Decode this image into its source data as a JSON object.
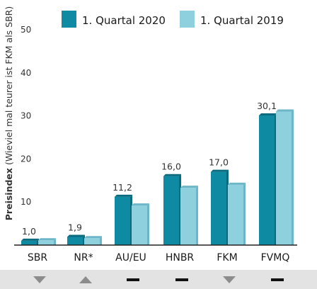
{
  "chart_data": {
    "type": "bar",
    "categories": [
      "SBR",
      "NR*",
      "AU/EU",
      "HNBR",
      "FKM",
      "FVMQ"
    ],
    "ylabel_bold": "Preisindex",
    "ylabel_rest": " (Wieviel mal teurer ist FKM als SBR)",
    "ylim": [
      0,
      50
    ],
    "yticks": [
      "10",
      "20",
      "30",
      "40",
      "50"
    ],
    "ytick_values": [
      10,
      20,
      30,
      40,
      50
    ],
    "grid": false,
    "legend_position": "top",
    "series": [
      {
        "name": "1. Quartal 2020",
        "values": [
          1.0,
          1.9,
          11.2,
          16.0,
          17.0,
          30.1
        ],
        "color": "#0e8aa3",
        "shade": "#0a6a7e"
      },
      {
        "name": "1. Quartal 2019",
        "values": [
          1.1,
          1.6,
          9.2,
          13.3,
          14.0,
          31.0
        ],
        "color": "#8fd0df",
        "shade": "#6cb6c8"
      }
    ],
    "data_labels": [
      "1,0",
      "1,9",
      "11,2",
      "16,0",
      "17,0",
      "30,1"
    ],
    "trend": [
      "down-triangle",
      "up-triangle",
      "dash",
      "dash",
      "down-triangle",
      "dash"
    ],
    "trend_colors": {
      "panel": "#e3e3e3",
      "triangle": "#8c8c8c",
      "dash": "#111111",
      "axis": "#222222"
    }
  }
}
